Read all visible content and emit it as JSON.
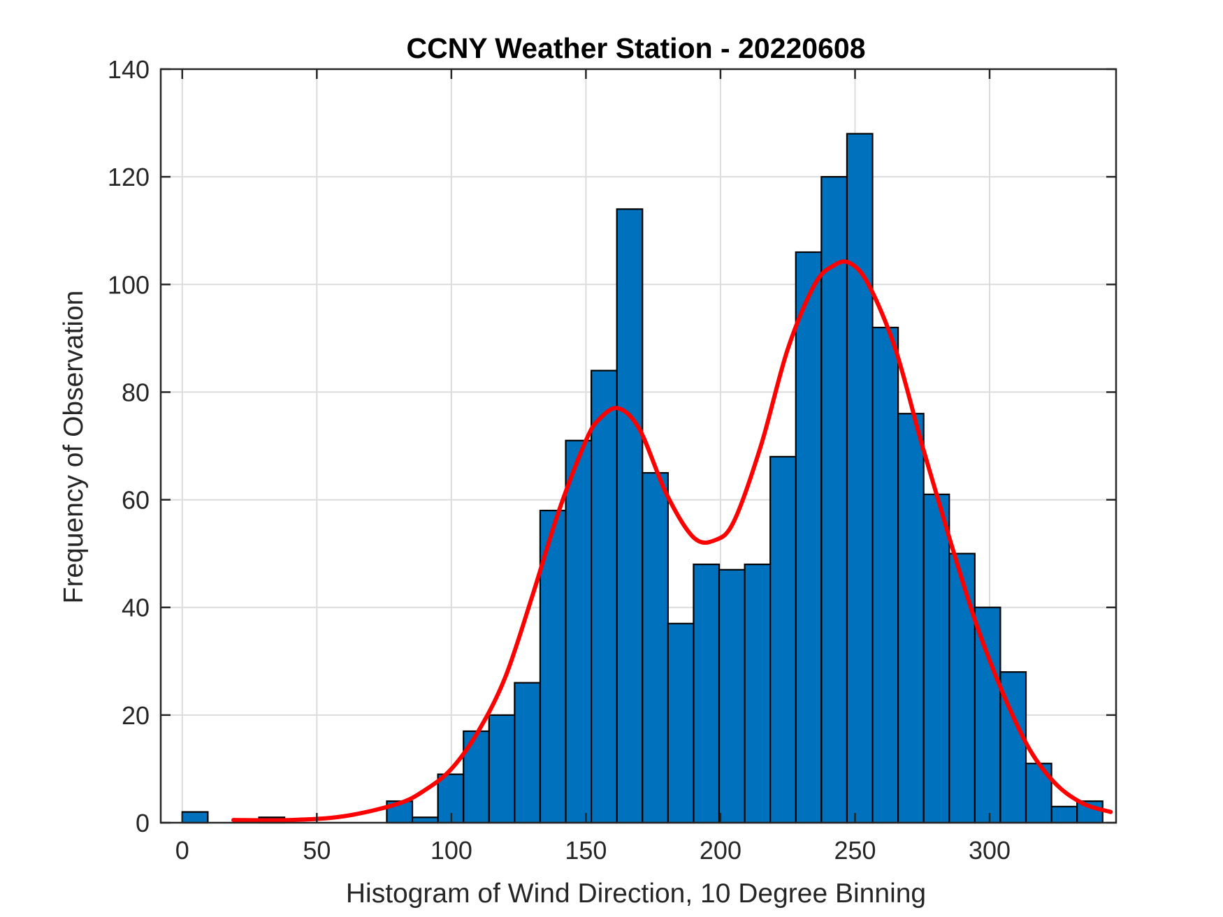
{
  "chart_data": {
    "type": "bar",
    "title": "CCNY Weather Station - 20220608",
    "xlabel": "Histogram of Wind Direction, 10 Degree Binning",
    "ylabel": "Frequency of Observation",
    "xlim": [
      -8,
      347
    ],
    "ylim": [
      0,
      140
    ],
    "xticks": [
      0,
      50,
      100,
      150,
      200,
      250,
      300
    ],
    "yticks": [
      0,
      20,
      40,
      60,
      80,
      100,
      120,
      140
    ],
    "grid": true,
    "bin_width": 9.5,
    "bars": [
      {
        "x_start": 0,
        "value": 2
      },
      {
        "x_start": 9.5,
        "value": 0
      },
      {
        "x_start": 19,
        "value": 0
      },
      {
        "x_start": 28.5,
        "value": 1
      },
      {
        "x_start": 38,
        "value": 0
      },
      {
        "x_start": 47.5,
        "value": 0
      },
      {
        "x_start": 57,
        "value": 0
      },
      {
        "x_start": 66.5,
        "value": 0
      },
      {
        "x_start": 76,
        "value": 4
      },
      {
        "x_start": 85.5,
        "value": 1
      },
      {
        "x_start": 95,
        "value": 9
      },
      {
        "x_start": 104.5,
        "value": 17
      },
      {
        "x_start": 114,
        "value": 20
      },
      {
        "x_start": 123.5,
        "value": 26
      },
      {
        "x_start": 133,
        "value": 58
      },
      {
        "x_start": 142.5,
        "value": 71
      },
      {
        "x_start": 152,
        "value": 84
      },
      {
        "x_start": 161.5,
        "value": 114
      },
      {
        "x_start": 171,
        "value": 65
      },
      {
        "x_start": 180.5,
        "value": 37
      },
      {
        "x_start": 190,
        "value": 48
      },
      {
        "x_start": 199.5,
        "value": 47
      },
      {
        "x_start": 209,
        "value": 48
      },
      {
        "x_start": 218.5,
        "value": 68
      },
      {
        "x_start": 228,
        "value": 106
      },
      {
        "x_start": 237.5,
        "value": 120
      },
      {
        "x_start": 247,
        "value": 128
      },
      {
        "x_start": 256.5,
        "value": 92
      },
      {
        "x_start": 266,
        "value": 76
      },
      {
        "x_start": 275.5,
        "value": 61
      },
      {
        "x_start": 285,
        "value": 50
      },
      {
        "x_start": 294.5,
        "value": 40
      },
      {
        "x_start": 304,
        "value": 28
      },
      {
        "x_start": 313.5,
        "value": 11
      },
      {
        "x_start": 323,
        "value": 3
      },
      {
        "x_start": 332.5,
        "value": 4
      }
    ],
    "fit_curve": {
      "type": "line",
      "color": "#ff0000",
      "x": [
        19,
        40,
        60,
        80,
        90,
        100,
        110,
        120,
        130,
        140,
        150,
        155,
        162,
        170,
        180,
        190,
        198,
        205,
        215,
        225,
        235,
        242,
        248,
        255,
        265,
        275,
        285,
        295,
        305,
        315,
        325,
        335,
        345
      ],
      "y": [
        0.5,
        0.5,
        1.2,
        3.5,
        6,
        10,
        17,
        27,
        42,
        58,
        71,
        75,
        77,
        73,
        61,
        53,
        52.5,
        56,
        70,
        88,
        100,
        103.5,
        104,
        100,
        88,
        70,
        53,
        37,
        24,
        13.5,
        7,
        3.5,
        2
      ]
    },
    "bar_color": "#0072bd",
    "bar_edge_color": "#000000"
  }
}
